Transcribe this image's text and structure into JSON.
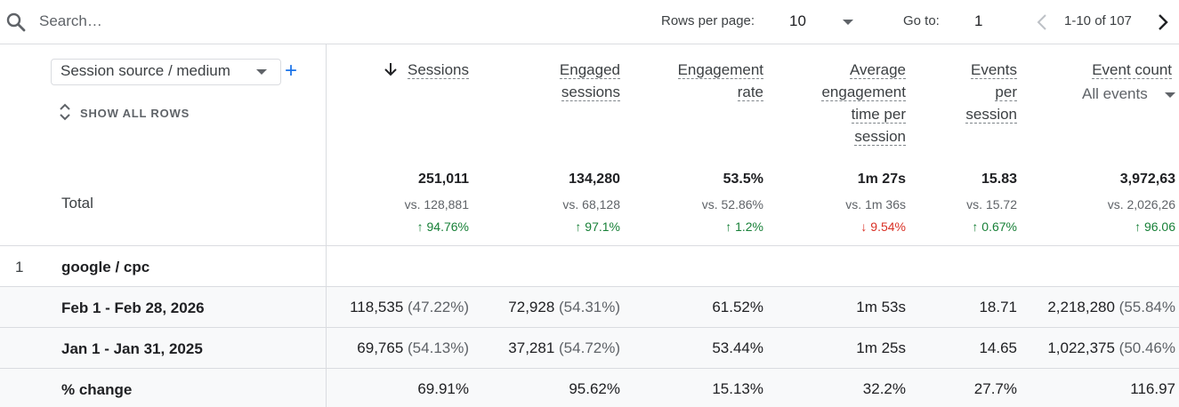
{
  "toolbar": {
    "search_placeholder": "Search…",
    "rows_per_page_label": "Rows per page:",
    "rows_per_page_value": "10",
    "goto_label": "Go to:",
    "goto_value": "1",
    "range_text": "1-10 of 107"
  },
  "dimension": {
    "selector_label": "Session source / medium",
    "show_all_rows": "SHOW ALL ROWS",
    "total_label": "Total"
  },
  "metrics": [
    {
      "l1": "Sessions",
      "l2": "",
      "l3": "",
      "l4": "",
      "sorted": true,
      "total": "251,011",
      "vs": "vs. 128,881",
      "change": "94.76%",
      "dir": "up"
    },
    {
      "l1": "Engaged",
      "l2": "sessions",
      "l3": "",
      "l4": "",
      "total": "134,280",
      "vs": "vs. 68,128",
      "change": "97.1%",
      "dir": "up"
    },
    {
      "l1": "Engagement",
      "l2": "rate",
      "l3": "",
      "l4": "",
      "total": "53.5%",
      "vs": "vs. 52.86%",
      "change": "1.2%",
      "dir": "up"
    },
    {
      "l1": "Average",
      "l2": "engagement",
      "l3": "time per",
      "l4": "session",
      "total": "1m 27s",
      "vs": "vs. 1m 36s",
      "change": "9.54%",
      "dir": "down"
    },
    {
      "l1": "Events",
      "l2": "per",
      "l3": "session",
      "l4": "",
      "total": "15.83",
      "vs": "vs. 15.72",
      "change": "0.67%",
      "dir": "up"
    },
    {
      "l1": "Event count",
      "l2": "",
      "l3": "",
      "l4": "",
      "sub_select": "All events",
      "total": "3,972,63",
      "vs": "vs. 2,026,26",
      "change": "96.06",
      "dir": "up"
    }
  ],
  "rows": [
    {
      "index": "1",
      "label": "google / cpc",
      "sub_rows": [
        {
          "label": "Feb 1 - Feb 28, 2026",
          "cells": [
            [
              "118,535",
              "(47.22%)"
            ],
            [
              "72,928",
              "(54.31%)"
            ],
            [
              "61.52%",
              ""
            ],
            [
              "1m 53s",
              ""
            ],
            [
              "18.71",
              ""
            ],
            [
              "2,218,280",
              "(55.84%"
            ]
          ]
        },
        {
          "label": "Jan 1 - Jan 31, 2025",
          "cells": [
            [
              "69,765",
              "(54.13%)"
            ],
            [
              "37,281",
              "(54.72%)"
            ],
            [
              "53.44%",
              ""
            ],
            [
              "1m 25s",
              ""
            ],
            [
              "14.65",
              ""
            ],
            [
              "1,022,375",
              "(50.46%"
            ]
          ]
        },
        {
          "label": "% change",
          "cells": [
            [
              "69.91%",
              ""
            ],
            [
              "95.62%",
              ""
            ],
            [
              "15.13%",
              ""
            ],
            [
              "32.2%",
              ""
            ],
            [
              "27.7%",
              ""
            ],
            [
              "116.97",
              ""
            ]
          ]
        }
      ]
    }
  ],
  "colors": {
    "up": "#188038",
    "down": "#d93025",
    "accent": "#1a73e8"
  },
  "icons": {
    "search": "search-icon",
    "sort": "arrow-down-icon",
    "prev": "chevron-left-icon",
    "next": "chevron-right-icon",
    "expand": "unfold-icon",
    "add": "plus-icon"
  }
}
